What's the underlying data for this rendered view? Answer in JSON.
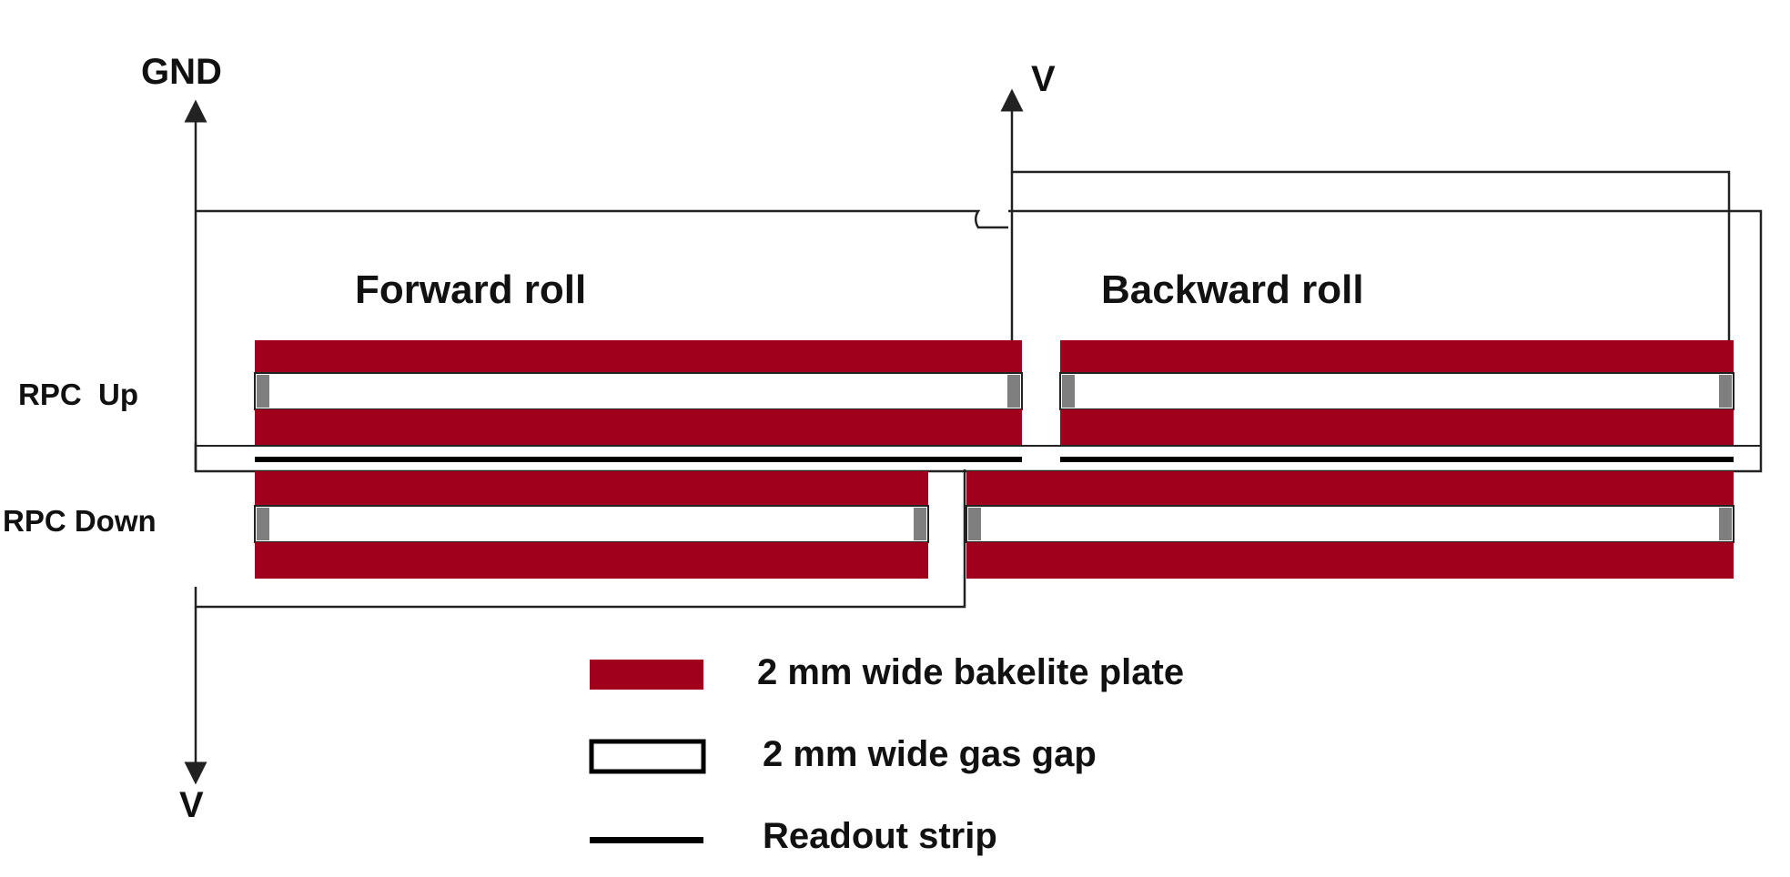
{
  "labels": {
    "gnd": "GND",
    "v_top": "V",
    "v_bottom": "V",
    "forward_roll": "Forward roll",
    "backward_roll": "Backward roll",
    "rpc_up": "RPC  Up",
    "rpc_down": "RPC Down"
  },
  "legend": {
    "bakelite": "2 mm wide bakelite plate",
    "gas_gap": "2 mm wide gas gap",
    "readout": "Readout strip"
  },
  "colors": {
    "bakelite": "#a1001d",
    "spacer": "#7f7f7f",
    "line": "#222222",
    "strip": "#000000"
  }
}
